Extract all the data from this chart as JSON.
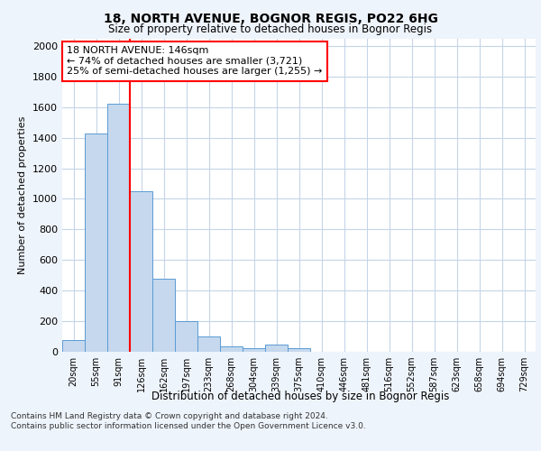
{
  "title1": "18, NORTH AVENUE, BOGNOR REGIS, PO22 6HG",
  "title2": "Size of property relative to detached houses in Bognor Regis",
  "xlabel": "Distribution of detached houses by size in Bognor Regis",
  "ylabel": "Number of detached properties",
  "bar_labels": [
    "20sqm",
    "55sqm",
    "91sqm",
    "126sqm",
    "162sqm",
    "197sqm",
    "233sqm",
    "268sqm",
    "304sqm",
    "339sqm",
    "375sqm",
    "410sqm",
    "446sqm",
    "481sqm",
    "516sqm",
    "552sqm",
    "587sqm",
    "623sqm",
    "658sqm",
    "694sqm",
    "729sqm"
  ],
  "bar_heights": [
    75,
    1425,
    1625,
    1050,
    475,
    200,
    100,
    35,
    25,
    50,
    25,
    0,
    0,
    0,
    0,
    0,
    0,
    0,
    0,
    0,
    0
  ],
  "bar_color": "#c5d8ed",
  "bar_edge_color": "#5b9bd5",
  "vline_x": 3,
  "vline_color": "red",
  "ylim": [
    0,
    2050
  ],
  "yticks": [
    0,
    200,
    400,
    600,
    800,
    1000,
    1200,
    1400,
    1600,
    1800,
    2000
  ],
  "annotation_text": "18 NORTH AVENUE: 146sqm\n← 74% of detached houses are smaller (3,721)\n25% of semi-detached houses are larger (1,255) →",
  "annotation_box_color": "white",
  "annotation_box_edge_color": "red",
  "footnote": "Contains HM Land Registry data © Crown copyright and database right 2024.\nContains public sector information licensed under the Open Government Licence v3.0.",
  "bg_color": "#eef4fb",
  "plot_bg_color": "white",
  "grid_color": "#c5d5e8"
}
